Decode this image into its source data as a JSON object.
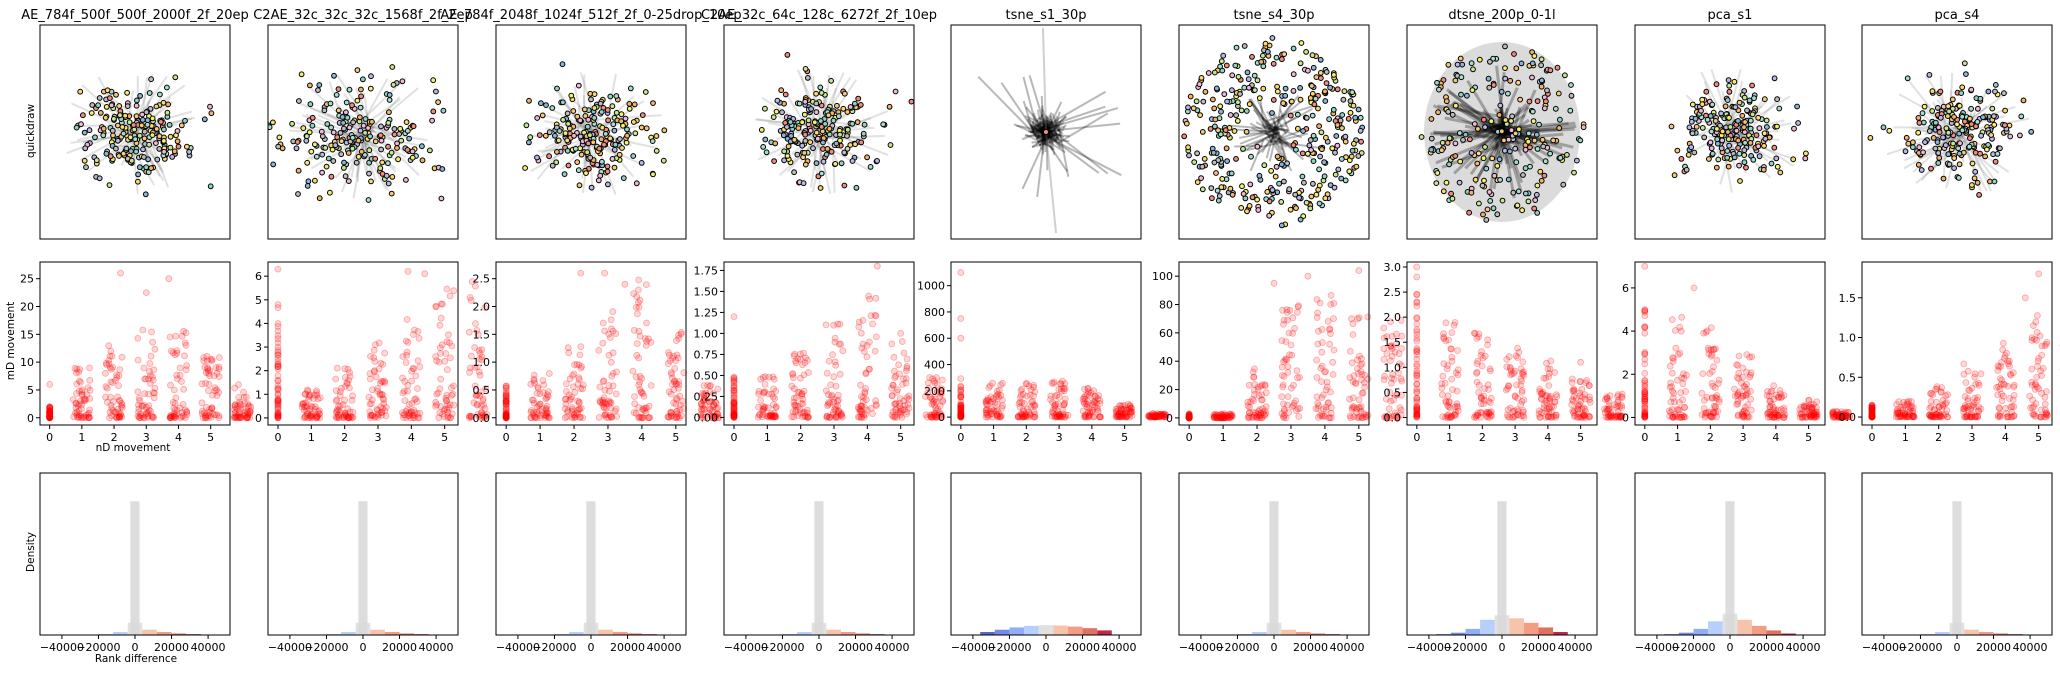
{
  "figure": {
    "row_labels": [
      "quickdraw",
      "",
      ""
    ],
    "row2_ylabel": "mD movement",
    "row2_xlabel": "nD movement",
    "row3_ylabel": "Density",
    "row3_xlabel": "Rank difference"
  },
  "chart_data": [
    {
      "type": "scatter",
      "title": "AE_784f_500f_500f_2000f_2f_20ep",
      "xlim": [
        -0.3,
        5.6
      ],
      "ylim": [
        -1.3,
        28
      ],
      "x_ticks": [
        0,
        1,
        2,
        3,
        4,
        5
      ],
      "y_ticks": [
        0,
        5,
        10,
        15,
        20,
        25
      ],
      "y_tick_labels": [
        "0",
        "5",
        "10",
        "15",
        "20",
        "25"
      ],
      "x_labels": [
        "0",
        "1",
        "2",
        "3",
        "4",
        "5"
      ],
      "color": "#ff0000",
      "max_ys": [
        2,
        9,
        13,
        16,
        18,
        12,
        6
      ],
      "outliers": [
        [
          2.2,
          26
        ],
        [
          3.7,
          25
        ],
        [
          3,
          22.5
        ],
        [
          4.9,
          9
        ],
        [
          0,
          6
        ]
      ]
    },
    {
      "type": "scatter",
      "title": "C2AE_32c_32c_32c_1568f_2f_2ep",
      "xlim": [
        -0.3,
        5.4
      ],
      "ylim": [
        -0.3,
        6.6
      ],
      "x_ticks": [
        0,
        1,
        2,
        3,
        4,
        5
      ],
      "y_ticks": [
        0,
        1,
        2,
        3,
        4,
        5,
        6
      ],
      "y_tick_labels": [
        "0",
        "1",
        "2",
        "3",
        "4",
        "5",
        "6"
      ],
      "x_labels": [
        "0",
        "1",
        "2",
        "3",
        "4",
        "5"
      ],
      "color": "#ff0000",
      "max_ys": [
        5,
        1.2,
        2.2,
        3.2,
        4.5,
        5.5,
        5.8
      ],
      "outliers": [
        [
          0,
          6.3
        ],
        [
          3.9,
          6.2
        ],
        [
          4.4,
          6.1
        ],
        [
          5,
          2.4
        ]
      ]
    },
    {
      "type": "scatter",
      "title": "AE_784f_2048f_1024f_512f_2f_0-25drop_10ep",
      "xlim": [
        -0.3,
        5.3
      ],
      "ylim": [
        -0.13,
        2.8
      ],
      "x_ticks": [
        0,
        1,
        2,
        3,
        4,
        5
      ],
      "y_ticks": [
        0.0,
        0.5,
        1.0,
        1.5,
        2.0,
        2.5
      ],
      "y_tick_labels": [
        "0.0",
        "0.5",
        "1.0",
        "1.5",
        "2.0",
        "2.5"
      ],
      "x_labels": [
        "0",
        "1",
        "2",
        "3",
        "4",
        "5"
      ],
      "color": "#ff0000",
      "max_ys": [
        0.6,
        0.8,
        1.3,
        2.0,
        2.6,
        1.6,
        0.6
      ],
      "outliers": [
        [
          2.2,
          2.6
        ],
        [
          2.9,
          2.6
        ],
        [
          3.5,
          2.4
        ],
        [
          5,
          0.6
        ]
      ]
    },
    {
      "type": "scatter",
      "title": "C2AE_32c_64c_128c_6272f_2f_10ep",
      "xlim": [
        -0.3,
        5.4
      ],
      "ylim": [
        -0.09,
        1.85
      ],
      "x_ticks": [
        0,
        1,
        2,
        3,
        4,
        5
      ],
      "y_ticks": [
        0.0,
        0.25,
        0.5,
        0.75,
        1.0,
        1.25,
        1.5,
        1.75
      ],
      "y_tick_labels": [
        "0.00",
        "0.25",
        "0.50",
        "0.75",
        "1.00",
        "1.25",
        "1.50",
        "1.75"
      ],
      "x_labels": [
        "0",
        "1",
        "2",
        "3",
        "4",
        "5"
      ],
      "color": "#ff0000",
      "max_ys": [
        0.5,
        0.5,
        0.8,
        1.2,
        1.5,
        1.0,
        0.5
      ],
      "outliers": [
        [
          0,
          1.2
        ],
        [
          4.3,
          1.8
        ],
        [
          5,
          1.0
        ]
      ]
    },
    {
      "type": "scatter",
      "title": "tsne_s1_30p",
      "xlim": [
        -0.3,
        5.5
      ],
      "ylim": [
        -60,
        1180
      ],
      "x_ticks": [
        0,
        1,
        2,
        3,
        4,
        5
      ],
      "y_ticks": [
        0,
        200,
        400,
        600,
        800,
        1000
      ],
      "y_tick_labels": [
        "0",
        "200",
        "400",
        "600",
        "800",
        "1000"
      ],
      "x_labels": [
        "0",
        "1",
        "2",
        "3",
        "4",
        "5"
      ],
      "color": "#ff0000",
      "max_ys": [
        300,
        270,
        270,
        280,
        230,
        100,
        30
      ],
      "outliers": [
        [
          0,
          1100
        ],
        [
          0,
          750
        ],
        [
          0,
          600
        ],
        [
          5.2,
          40
        ]
      ]
    },
    {
      "type": "scatter",
      "title": "tsne_s4_30p",
      "xlim": [
        -0.3,
        5.3
      ],
      "ylim": [
        -5,
        110
      ],
      "x_ticks": [
        0,
        1,
        2,
        3,
        4,
        5
      ],
      "y_ticks": [
        0,
        20,
        40,
        60,
        80,
        100
      ],
      "y_tick_labels": [
        "0",
        "20",
        "40",
        "60",
        "80",
        "100"
      ],
      "x_labels": [
        "0",
        "1",
        "2",
        "3",
        "4",
        "5"
      ],
      "color": "#ff0000",
      "max_ys": [
        3,
        3,
        35,
        80,
        100,
        80,
        70
      ],
      "outliers": [
        [
          5,
          104
        ],
        [
          3.5,
          100
        ],
        [
          2.5,
          95
        ]
      ]
    },
    {
      "type": "scatter",
      "title": "dtsne_200p_0-1l",
      "xlim": [
        -0.3,
        5.5
      ],
      "ylim": [
        -0.15,
        3.1
      ],
      "x_ticks": [
        0,
        1,
        2,
        3,
        4,
        5
      ],
      "y_ticks": [
        0.0,
        0.5,
        1.0,
        1.5,
        2.0,
        2.5,
        3.0
      ],
      "y_tick_labels": [
        "0.0",
        "0.5",
        "1.0",
        "1.5",
        "2.0",
        "2.5",
        "3.0"
      ],
      "x_labels": [
        "0",
        "1",
        "2",
        "3",
        "4",
        "5"
      ],
      "color": "#ff0000",
      "max_ys": [
        2.5,
        2.0,
        1.8,
        1.5,
        1.2,
        0.8,
        0.5
      ],
      "outliers": [
        [
          0,
          3.0
        ],
        [
          0,
          2.8
        ],
        [
          5,
          1.1
        ],
        [
          5.3,
          0.3
        ]
      ]
    },
    {
      "type": "scatter",
      "title": "pca_s1",
      "xlim": [
        -0.3,
        5.5
      ],
      "ylim": [
        -0.35,
        7.2
      ],
      "x_ticks": [
        0,
        1,
        2,
        3,
        4,
        5
      ],
      "y_ticks": [
        0,
        2,
        4,
        6
      ],
      "y_tick_labels": [
        "0",
        "2",
        "4",
        "6"
      ],
      "x_labels": [
        "0",
        "1",
        "2",
        "3",
        "4",
        "5"
      ],
      "color": "#ff0000",
      "max_ys": [
        5,
        4.8,
        4.5,
        3.0,
        1.5,
        0.8,
        0.3
      ],
      "outliers": [
        [
          0,
          7.0
        ],
        [
          1.5,
          6.0
        ],
        [
          5,
          0.8
        ]
      ]
    },
    {
      "type": "scatter",
      "title": "pca_s4",
      "xlim": [
        -0.3,
        5.4
      ],
      "ylim": [
        -0.1,
        1.95
      ],
      "x_ticks": [
        0,
        1,
        2,
        3,
        4,
        5
      ],
      "y_ticks": [
        0.0,
        0.5,
        1.0,
        1.5
      ],
      "y_tick_labels": [
        "0.0",
        "0.5",
        "1.0",
        "1.5"
      ],
      "x_labels": [
        "0",
        "1",
        "2",
        "3",
        "4",
        "5"
      ],
      "color": "#ff0000",
      "max_ys": [
        0.15,
        0.2,
        0.4,
        0.7,
        1.0,
        1.4,
        1.7
      ],
      "outliers": [
        [
          5,
          1.8
        ],
        [
          4.6,
          1.5
        ]
      ]
    },
    {
      "type": "histogram",
      "xlim": [
        -52000,
        52000
      ],
      "x_ticks": [
        -40000,
        -20000,
        0,
        20000,
        40000
      ],
      "x_tick_labels": [
        "−40000",
        "−20000",
        "0",
        "20000",
        "40000"
      ],
      "bin_centers": [
        -32000,
        -24000,
        -16000,
        -8000,
        0,
        8000,
        16000,
        24000,
        32000
      ],
      "blue_values": [
        0.002,
        0.003,
        0.005,
        0.02,
        0.08,
        0.035,
        0.02,
        0.01,
        0.005
      ],
      "gray_value": 0.88,
      "bar_colors": [
        "#3b4cc0",
        "#5977e3",
        "#7b9ff9",
        "#aac7fd",
        "#dddcdc",
        "#f7b89c",
        "#f18d6f",
        "#d95847",
        "#b40426"
      ]
    },
    {
      "type": "histogram",
      "xlim": [
        -52000,
        52000
      ],
      "x_ticks": [
        -40000,
        -20000,
        0,
        20000,
        40000
      ],
      "x_tick_labels": [
        "−40000",
        "−20000",
        "0",
        "20000",
        "40000"
      ],
      "bin_centers": [
        -32000,
        -24000,
        -16000,
        -8000,
        0,
        8000,
        16000,
        24000,
        32000
      ],
      "blue_values": [
        0.002,
        0.003,
        0.005,
        0.02,
        0.08,
        0.035,
        0.02,
        0.01,
        0.005
      ],
      "gray_value": 0.88,
      "bar_colors": [
        "#3b4cc0",
        "#5977e3",
        "#7b9ff9",
        "#aac7fd",
        "#dddcdc",
        "#f7b89c",
        "#f18d6f",
        "#d95847",
        "#b40426"
      ]
    },
    {
      "type": "histogram",
      "xlim": [
        -52000,
        52000
      ],
      "x_ticks": [
        -40000,
        -20000,
        0,
        20000,
        40000
      ],
      "x_tick_labels": [
        "−40000",
        "−20000",
        "0",
        "20000",
        "40000"
      ],
      "bin_centers": [
        -32000,
        -24000,
        -16000,
        -8000,
        0,
        8000,
        16000,
        24000,
        32000
      ],
      "blue_values": [
        0.002,
        0.003,
        0.005,
        0.02,
        0.08,
        0.035,
        0.02,
        0.01,
        0.005
      ],
      "gray_value": 0.88,
      "bar_colors": [
        "#3b4cc0",
        "#5977e3",
        "#7b9ff9",
        "#aac7fd",
        "#dddcdc",
        "#f7b89c",
        "#f18d6f",
        "#d95847",
        "#b40426"
      ]
    },
    {
      "type": "histogram",
      "xlim": [
        -52000,
        52000
      ],
      "x_ticks": [
        -40000,
        -20000,
        0,
        20000,
        40000
      ],
      "x_tick_labels": [
        "−40000",
        "−20000",
        "0",
        "20000",
        "40000"
      ],
      "bin_centers": [
        -32000,
        -24000,
        -16000,
        -8000,
        0,
        8000,
        16000,
        24000,
        32000
      ],
      "blue_values": [
        0.002,
        0.003,
        0.005,
        0.02,
        0.08,
        0.035,
        0.02,
        0.01,
        0.005
      ],
      "gray_value": 0.88,
      "bar_colors": [
        "#3b4cc0",
        "#5977e3",
        "#7b9ff9",
        "#aac7fd",
        "#dddcdc",
        "#f7b89c",
        "#f18d6f",
        "#d95847",
        "#b40426"
      ]
    },
    {
      "type": "histogram",
      "xlim": [
        -52000,
        52000
      ],
      "x_ticks": [
        -40000,
        -20000,
        0,
        20000,
        40000
      ],
      "x_tick_labels": [
        "−40000",
        "−20000",
        "0",
        "20000",
        "40000"
      ],
      "bin_centers": [
        -32000,
        -24000,
        -16000,
        -8000,
        0,
        8000,
        16000,
        24000,
        32000
      ],
      "blue_values": [
        0.002,
        0.003,
        0.005,
        0.02,
        0.08,
        0.035,
        0.02,
        0.01,
        0.005
      ],
      "gray_value": 0.88,
      "bar_colors": [
        "#3b4cc0",
        "#5977e3",
        "#7b9ff9",
        "#aac7fd",
        "#dddcdc",
        "#f7b89c",
        "#f18d6f",
        "#d95847",
        "#b40426"
      ]
    },
    {
      "type": "histogram",
      "xlim": [
        -52000,
        52000
      ],
      "x_ticks": [
        -40000,
        -20000,
        0,
        20000,
        40000
      ],
      "x_tick_labels": [
        "−40000",
        "−20000",
        "0",
        "20000",
        "40000"
      ],
      "bin_centers": [
        -32000,
        -24000,
        -16000,
        -8000,
        0,
        8000,
        16000,
        24000,
        32000
      ],
      "blue_values": [
        0.002,
        0.003,
        0.005,
        0.02,
        0.08,
        0.035,
        0.02,
        0.01,
        0.005
      ],
      "gray_value": 0.88,
      "bar_colors": [
        "#3b4cc0",
        "#5977e3",
        "#7b9ff9",
        "#aac7fd",
        "#dddcdc",
        "#f7b89c",
        "#f18d6f",
        "#d95847",
        "#b40426"
      ]
    },
    {
      "type": "histogram",
      "xlim": [
        -52000,
        52000
      ],
      "x_ticks": [
        -40000,
        -20000,
        0,
        20000,
        40000
      ],
      "x_tick_labels": [
        "−40000",
        "−20000",
        "0",
        "20000",
        "40000"
      ],
      "bin_centers": [
        -32000,
        -24000,
        -16000,
        -8000,
        0,
        8000,
        16000,
        24000,
        32000
      ],
      "blue_values": [
        0.002,
        0.003,
        0.005,
        0.02,
        0.08,
        0.035,
        0.02,
        0.01,
        0.005
      ],
      "gray_value": 0.88,
      "bar_colors": [
        "#3b4cc0",
        "#5977e3",
        "#7b9ff9",
        "#aac7fd",
        "#dddcdc",
        "#f7b89c",
        "#f18d6f",
        "#d95847",
        "#b40426"
      ]
    },
    {
      "type": "histogram",
      "xlim": [
        -52000,
        52000
      ],
      "x_ticks": [
        -40000,
        -20000,
        0,
        20000,
        40000
      ],
      "x_tick_labels": [
        "−40000",
        "−20000",
        "0",
        "20000",
        "40000"
      ],
      "bin_centers": [
        -32000,
        -24000,
        -16000,
        -8000,
        0,
        8000,
        16000,
        24000,
        32000
      ],
      "blue_values": [
        0.002,
        0.003,
        0.005,
        0.02,
        0.08,
        0.035,
        0.02,
        0.01,
        0.005
      ],
      "gray_value": 0.88,
      "bar_colors": [
        "#3b4cc0",
        "#5977e3",
        "#7b9ff9",
        "#aac7fd",
        "#dddcdc",
        "#f7b89c",
        "#f18d6f",
        "#d95847",
        "#b40426"
      ]
    },
    {
      "type": "histogram",
      "xlim": [
        -52000,
        52000
      ],
      "x_ticks": [
        -40000,
        -20000,
        0,
        20000,
        40000
      ],
      "x_tick_labels": [
        "−40000",
        "−20000",
        "0",
        "20000",
        "40000"
      ],
      "bin_centers": [
        -32000,
        -24000,
        -16000,
        -8000,
        0,
        8000,
        16000,
        24000,
        32000
      ],
      "blue_values": [
        0.002,
        0.003,
        0.005,
        0.02,
        0.08,
        0.035,
        0.02,
        0.01,
        0.005
      ],
      "gray_value": 0.88,
      "bar_colors": [
        "#3b4cc0",
        "#5977e3",
        "#7b9ff9",
        "#aac7fd",
        "#dddcdc",
        "#f7b89c",
        "#f18d6f",
        "#d95847",
        "#b40426"
      ]
    },
    {
      "type": "histogram",
      "xlim": [
        -52000,
        52000
      ],
      "x_ticks": [
        -40000,
        -20000,
        0,
        20000,
        40000
      ],
      "x_tick_labels": [
        "−40000",
        "−20000",
        "0",
        "20000",
        "40000"
      ],
      "bin_centers": [
        -32000,
        -24000,
        -16000,
        -8000,
        0,
        8000,
        16000,
        24000,
        32000
      ],
      "blue_values": [
        0.002,
        0.003,
        0.005,
        0.02,
        0.08,
        0.035,
        0.02,
        0.01,
        0.005
      ],
      "gray_value": 0.88,
      "bar_colors": [
        "#3b4cc0",
        "#5977e3",
        "#7b9ff9",
        "#aac7fd",
        "#dddcdc",
        "#f7b89c",
        "#f18d6f",
        "#d95847",
        "#b40426"
      ]
    }
  ]
}
